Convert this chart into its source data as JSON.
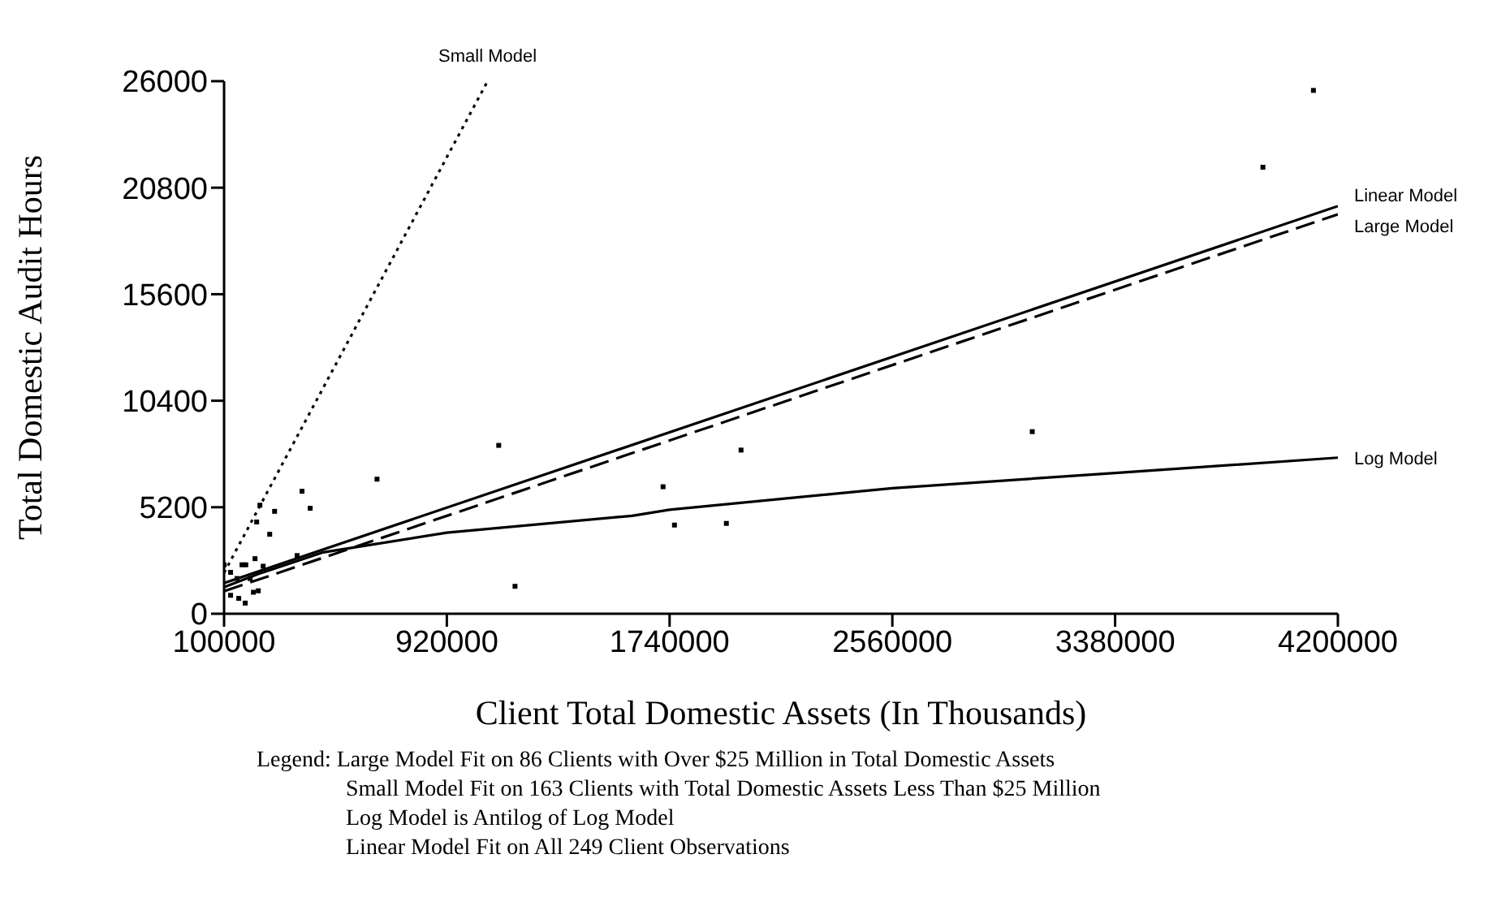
{
  "chart_data": {
    "type": "scatter",
    "xlabel": "Client Total Domestic Assets (In Thousands)",
    "ylabel": "Total Domestic Audit Hours",
    "xlim": [
      100000,
      4200000
    ],
    "xticks": [
      100000,
      920000,
      1740000,
      2560000,
      3380000,
      4200000
    ],
    "ylim": [
      0,
      26000
    ],
    "yticks": [
      0,
      5200,
      10400,
      15600,
      20800,
      26000
    ],
    "grid": false,
    "legend": false,
    "series": [
      {
        "color": "#000000",
        "marker": "square",
        "x": [
          4110000,
          3924000,
          3075000,
          2003000,
          1716000,
          1758000,
          1949000,
          1111000,
          1171000,
          663000,
          387000,
          417000,
          232000,
          286000,
          220000,
          268000,
          369000,
          100000,
          166000,
          180000,
          214000,
          244000,
          124000,
          124000,
          154000,
          178000,
          208000,
          226000,
          148000,
          196000
        ],
        "values": [
          25550,
          21800,
          8890,
          7990,
          6200,
          4330,
          4410,
          8220,
          1340,
          6570,
          5980,
          5150,
          5300,
          5000,
          4480,
          3880,
          2840,
          2390,
          2390,
          2390,
          2690,
          2320,
          2020,
          900,
          750,
          520,
          1050,
          1120,
          1720,
          1720
        ]
      },
      {
        "type": "line",
        "name": "Small Model",
        "color": "#000000",
        "line_style": "dotted",
        "marker": "none",
        "x": [
          100000,
          1070000
        ],
        "values": [
          2000,
          26000
        ]
      },
      {
        "type": "line",
        "name": "Linear Model",
        "color": "#000000",
        "line_style": "solid",
        "marker": "none",
        "x": [
          100000,
          4200000
        ],
        "values": [
          1500,
          19900
        ]
      },
      {
        "type": "line",
        "name": "Large Model",
        "color": "#000000",
        "line_style": "dashed",
        "marker": "none",
        "x": [
          100000,
          4200000
        ],
        "values": [
          1100,
          19500
        ]
      },
      {
        "type": "line",
        "name": "Log Model",
        "color": "#000000",
        "line_style": "solid",
        "marker": "none",
        "x": [
          100000,
          226000,
          345000,
          465000,
          920000,
          1602000,
          1740000,
          2560000,
          3380000,
          4200000
        ],
        "values": [
          1300,
          1940,
          2470,
          3000,
          3960,
          4780,
          5080,
          6130,
          6870,
          7620
        ]
      }
    ],
    "annotations": [
      "Legend: Large Model Fit on 86 Clients with Over $25 Million in Total Domestic Assets",
      "Small Model Fit on 163 Clients with Total Domestic Assets Less Than $25 Million",
      "Log Model is Antilog of Log Model",
      "Linear Model Fit on All 249 Client Observations"
    ]
  }
}
